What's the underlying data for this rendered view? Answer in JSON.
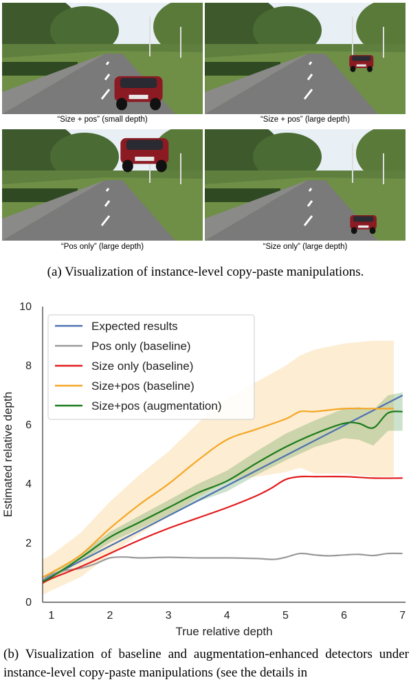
{
  "panel_a": {
    "photos": [
      {
        "caption": "“Size + pos” (small depth)",
        "car_x": 0.68,
        "car_y": 0.82,
        "car_scale": 1.0
      },
      {
        "caption": "“Size + pos” (large depth)",
        "car_x": 0.78,
        "car_y": 0.55,
        "car_scale": 0.5
      },
      {
        "caption": "“Pos only” (large depth)",
        "car_x": 0.71,
        "car_y": 0.24,
        "car_scale": 1.0
      },
      {
        "caption": "“Size only” (large depth)",
        "car_x": 0.79,
        "car_y": 0.86,
        "car_scale": 0.55
      }
    ],
    "caption": "(a) Visualization of instance-level copy-paste manipulations."
  },
  "panel_b_caption": "(b) Visualization of baseline and augmentation-enhanced detectors under instance-level copy-paste manipulations (see the details in",
  "chart_data": {
    "type": "line",
    "title": "",
    "xlabel": "True relative depth",
    "ylabel": "Estimated relative depth",
    "xlim": [
      0.85,
      7.05
    ],
    "ylim": [
      0,
      10
    ],
    "xticks": [
      1,
      2,
      3,
      4,
      5,
      6,
      7
    ],
    "yticks": [
      0,
      2,
      4,
      6,
      8,
      10
    ],
    "grid": false,
    "legend_position": "top-left",
    "series": [
      {
        "name": "Expected results",
        "color": "#4c72b0",
        "points": [
          [
            0.85,
            0.73
          ],
          [
            7,
            7.0
          ]
        ]
      },
      {
        "name": "Pos only (baseline)",
        "color": "#999999",
        "points": [
          [
            0.85,
            0.75
          ],
          [
            1.0,
            0.95
          ],
          [
            1.25,
            1.08
          ],
          [
            1.5,
            1.15
          ],
          [
            1.75,
            1.3
          ],
          [
            2.0,
            1.5
          ],
          [
            2.25,
            1.53
          ],
          [
            2.5,
            1.5
          ],
          [
            3.0,
            1.52
          ],
          [
            3.5,
            1.5
          ],
          [
            4.0,
            1.5
          ],
          [
            4.5,
            1.48
          ],
          [
            4.8,
            1.45
          ],
          [
            5.0,
            1.52
          ],
          [
            5.25,
            1.65
          ],
          [
            5.5,
            1.6
          ],
          [
            5.75,
            1.57
          ],
          [
            6.0,
            1.6
          ],
          [
            6.25,
            1.62
          ],
          [
            6.5,
            1.58
          ],
          [
            6.75,
            1.65
          ],
          [
            7.0,
            1.65
          ]
        ]
      },
      {
        "name": "Size only (baseline)",
        "color": "#e31a1c",
        "points": [
          [
            0.85,
            0.65
          ],
          [
            1.0,
            0.8
          ],
          [
            1.5,
            1.2
          ],
          [
            2.0,
            1.65
          ],
          [
            2.5,
            2.1
          ],
          [
            3.0,
            2.5
          ],
          [
            3.5,
            2.85
          ],
          [
            4.0,
            3.2
          ],
          [
            4.5,
            3.6
          ],
          [
            4.75,
            3.85
          ],
          [
            5.0,
            4.15
          ],
          [
            5.25,
            4.25
          ],
          [
            5.5,
            4.25
          ],
          [
            6.0,
            4.25
          ],
          [
            6.5,
            4.2
          ],
          [
            7.0,
            4.2
          ]
        ]
      },
      {
        "name": "Size+pos (baseline)",
        "color": "#f5a623",
        "band": [
          0.6,
          0.6,
          0.75,
          0.9,
          1.0,
          1.1,
          1.25,
          1.4,
          1.6,
          1.8,
          1.9,
          2.1,
          2.2,
          2.3,
          2.3
        ],
        "points": [
          [
            0.85,
            0.85
          ],
          [
            1.0,
            1.0
          ],
          [
            1.5,
            1.6
          ],
          [
            2.0,
            2.5
          ],
          [
            2.5,
            3.3
          ],
          [
            3.0,
            4.0
          ],
          [
            3.5,
            4.8
          ],
          [
            4.0,
            5.5
          ],
          [
            4.5,
            5.85
          ],
          [
            5.0,
            6.2
          ],
          [
            5.25,
            6.45
          ],
          [
            5.5,
            6.45
          ],
          [
            6.0,
            6.55
          ],
          [
            6.5,
            6.55
          ],
          [
            6.85,
            6.55
          ]
        ]
      },
      {
        "name": "Size+pos (augmentation)",
        "color": "#1a7a1a",
        "band": [
          0.08,
          0.08,
          0.12,
          0.18,
          0.22,
          0.25,
          0.3,
          0.35,
          0.4,
          0.45,
          0.45,
          0.5,
          0.55,
          0.6,
          0.6,
          0.65
        ],
        "points": [
          [
            0.85,
            0.7
          ],
          [
            1.0,
            0.85
          ],
          [
            1.5,
            1.5
          ],
          [
            2.0,
            2.2
          ],
          [
            2.5,
            2.7
          ],
          [
            3.0,
            3.2
          ],
          [
            3.5,
            3.7
          ],
          [
            4.0,
            4.1
          ],
          [
            4.5,
            4.7
          ],
          [
            5.0,
            5.25
          ],
          [
            5.5,
            5.7
          ],
          [
            6.0,
            6.05
          ],
          [
            6.25,
            6.05
          ],
          [
            6.5,
            5.9
          ],
          [
            6.75,
            6.4
          ],
          [
            7.0,
            6.45
          ]
        ]
      }
    ]
  }
}
